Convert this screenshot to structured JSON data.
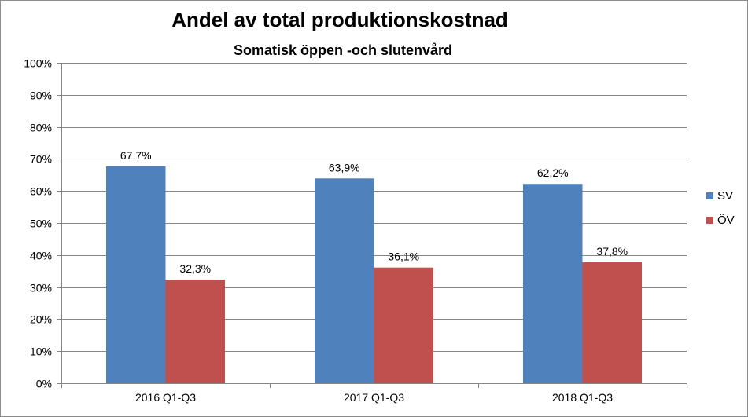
{
  "chart_data": {
    "type": "bar",
    "title": "Andel av total produktionskostnad",
    "subtitle": "Somatisk öppen -och slutenvård",
    "categories": [
      "2016 Q1-Q3",
      "2017 Q1-Q3",
      "2018 Q1-Q3"
    ],
    "series": [
      {
        "name": "SV",
        "color": "#4f81bd",
        "values": [
          67.7,
          63.9,
          62.2
        ],
        "labels": [
          "67,7%",
          "63,9%",
          "62,2%"
        ]
      },
      {
        "name": "ÖV",
        "color": "#c0504d",
        "values": [
          32.3,
          36.1,
          37.8
        ],
        "labels": [
          "32,3%",
          "36,1%",
          "37,8%"
        ]
      }
    ],
    "ylim": [
      0,
      100
    ],
    "yticks": [
      0,
      10,
      20,
      30,
      40,
      50,
      60,
      70,
      80,
      90,
      100
    ],
    "ytick_labels": [
      "0%",
      "10%",
      "20%",
      "30%",
      "40%",
      "50%",
      "60%",
      "70%",
      "80%",
      "90%",
      "100%"
    ],
    "grid": true,
    "legend": "right",
    "xlabel": "",
    "ylabel": ""
  }
}
